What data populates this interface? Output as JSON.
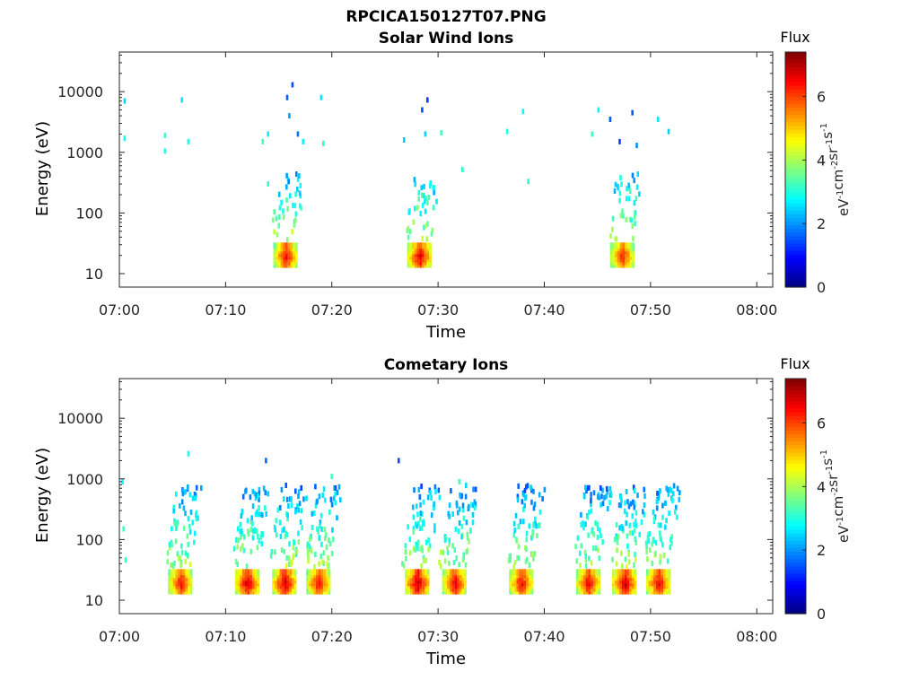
{
  "figure": {
    "title": "RPCICA150127T07.PNG",
    "colorbar_label": "Flux",
    "colorbar_unit": "eV^-1 cm^-2 sr^-1 s^-1",
    "colorbar_range": [
      0,
      7.4
    ],
    "colorbar_ticks": [
      "0",
      "2",
      "4",
      "6"
    ],
    "colormap": "jet"
  },
  "chart_data": [
    {
      "type": "heatmap",
      "title": "Solar Wind Ions",
      "xlabel": "Time",
      "ylabel": "Energy (eV)",
      "x_ticks": [
        "07:00",
        "07:10",
        "07:20",
        "07:30",
        "07:40",
        "07:50",
        "08:00"
      ],
      "xlim_minutes_after_0700": [
        0,
        61.5
      ],
      "y_scale": "log",
      "y_ticks": [
        "10",
        "100",
        "1000",
        "10000"
      ],
      "ylim": [
        6,
        45000
      ],
      "clusters": [
        {
          "center_minute": 15.7,
          "core_flux": 7.0,
          "peak_energy": 20
        },
        {
          "center_minute": 28.3,
          "core_flux": 7.2,
          "peak_energy": 20
        },
        {
          "center_minute": 47.4,
          "core_flux": 6.8,
          "peak_energy": 20
        }
      ],
      "scattered_points": [
        {
          "minute": 0.5,
          "energy": 7000,
          "flux": 2.5
        },
        {
          "minute": 0.5,
          "energy": 1700,
          "flux": 2.8
        },
        {
          "minute": 4.3,
          "energy": 1900,
          "flux": 3.2
        },
        {
          "minute": 4.3,
          "energy": 1050,
          "flux": 3.0
        },
        {
          "minute": 5.9,
          "energy": 7300,
          "flux": 2.6
        },
        {
          "minute": 6.5,
          "energy": 1500,
          "flux": 3.0
        },
        {
          "minute": 13.5,
          "energy": 1500,
          "flux": 3.3
        },
        {
          "minute": 14.0,
          "energy": 2000,
          "flux": 2.7
        },
        {
          "minute": 14.0,
          "energy": 300,
          "flux": 3.1
        },
        {
          "minute": 16.3,
          "energy": 13000,
          "flux": 1.5
        },
        {
          "minute": 15.8,
          "energy": 8000,
          "flux": 1.6
        },
        {
          "minute": 16.0,
          "energy": 4000,
          "flux": 2.1
        },
        {
          "minute": 16.8,
          "energy": 2000,
          "flux": 1.8
        },
        {
          "minute": 17.3,
          "energy": 1500,
          "flux": 2.7
        },
        {
          "minute": 19.0,
          "energy": 8000,
          "flux": 2.6
        },
        {
          "minute": 19.2,
          "energy": 1400,
          "flux": 3.2
        },
        {
          "minute": 26.8,
          "energy": 1600,
          "flux": 2.4
        },
        {
          "minute": 28.5,
          "energy": 5000,
          "flux": 1.5
        },
        {
          "minute": 29.0,
          "energy": 7300,
          "flux": 1.4
        },
        {
          "minute": 28.8,
          "energy": 2000,
          "flux": 2.5
        },
        {
          "minute": 30.3,
          "energy": 2100,
          "flux": 3.3
        },
        {
          "minute": 32.3,
          "energy": 520,
          "flux": 3.1
        },
        {
          "minute": 36.5,
          "energy": 2200,
          "flux": 3.0
        },
        {
          "minute": 38.0,
          "energy": 4700,
          "flux": 2.8
        },
        {
          "minute": 38.5,
          "energy": 330,
          "flux": 3.0
        },
        {
          "minute": 44.5,
          "energy": 2000,
          "flux": 3.2
        },
        {
          "minute": 45.1,
          "energy": 5000,
          "flux": 2.7
        },
        {
          "minute": 46.2,
          "energy": 3500,
          "flux": 1.6
        },
        {
          "minute": 47.1,
          "energy": 1500,
          "flux": 1.4
        },
        {
          "minute": 48.3,
          "energy": 4500,
          "flux": 1.6
        },
        {
          "minute": 48.7,
          "energy": 1300,
          "flux": 2.0
        },
        {
          "minute": 50.7,
          "energy": 3500,
          "flux": 2.6
        },
        {
          "minute": 51.7,
          "energy": 2200,
          "flux": 2.4
        }
      ]
    },
    {
      "type": "heatmap",
      "title": "Cometary Ions",
      "xlabel": "Time",
      "ylabel": "Energy (eV)",
      "x_ticks": [
        "07:00",
        "07:10",
        "07:20",
        "07:30",
        "07:40",
        "07:50",
        "08:00"
      ],
      "xlim_minutes_after_0700": [
        0,
        61.5
      ],
      "y_scale": "log",
      "y_ticks": [
        "10",
        "100",
        "1000",
        "10000"
      ],
      "ylim": [
        6,
        45000
      ],
      "clusters": [
        {
          "center_minute": 5.8,
          "core_flux": 7.0,
          "peak_energy": 20
        },
        {
          "center_minute": 12.1,
          "core_flux": 7.3,
          "peak_energy": 20
        },
        {
          "center_minute": 15.6,
          "core_flux": 7.3,
          "peak_energy": 20
        },
        {
          "center_minute": 18.8,
          "core_flux": 7.0,
          "peak_energy": 20
        },
        {
          "center_minute": 28.1,
          "core_flux": 7.4,
          "peak_energy": 20
        },
        {
          "center_minute": 31.6,
          "core_flux": 7.1,
          "peak_energy": 20
        },
        {
          "center_minute": 37.9,
          "core_flux": 7.0,
          "peak_energy": 20
        },
        {
          "center_minute": 44.2,
          "core_flux": 7.1,
          "peak_energy": 20
        },
        {
          "center_minute": 47.6,
          "core_flux": 7.3,
          "peak_energy": 20
        },
        {
          "center_minute": 50.8,
          "core_flux": 7.1,
          "peak_energy": 20
        }
      ],
      "scattered_points": [
        {
          "minute": 0.3,
          "energy": 900,
          "flux": 2.8
        },
        {
          "minute": 0.4,
          "energy": 150,
          "flux": 3.3
        },
        {
          "minute": 0.6,
          "energy": 46,
          "flux": 3.2
        },
        {
          "minute": 6.5,
          "energy": 2600,
          "flux": 3.0
        },
        {
          "minute": 13.8,
          "energy": 2000,
          "flux": 1.7
        },
        {
          "minute": 26.3,
          "energy": 2000,
          "flux": 1.5
        },
        {
          "minute": 20.0,
          "energy": 1100,
          "flux": 3.3
        },
        {
          "minute": 32.0,
          "energy": 900,
          "flux": 3.3
        }
      ]
    }
  ]
}
